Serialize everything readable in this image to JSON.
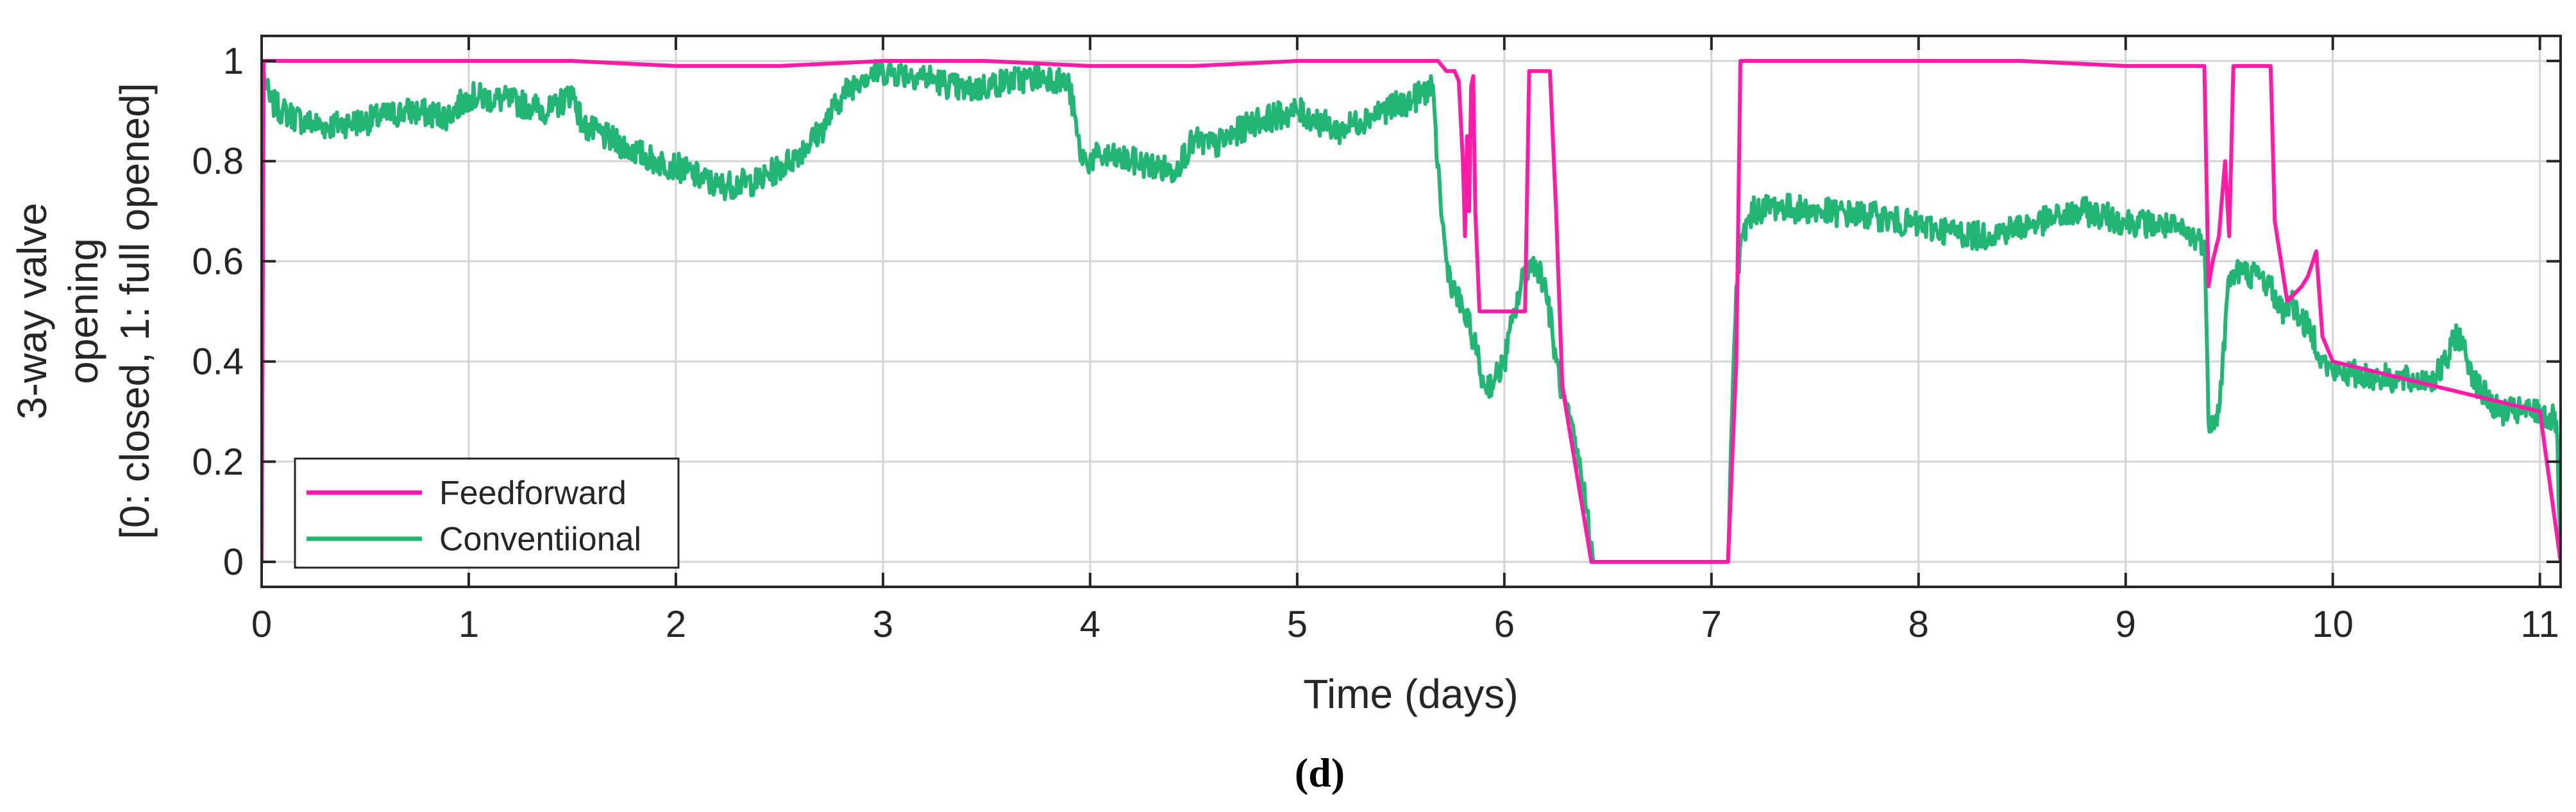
{
  "chart_data": {
    "type": "line",
    "xlabel": "Time (days)",
    "ylabel_lines": [
      "3-way valve",
      "opening",
      "[0: closed, 1: full opened]"
    ],
    "panel_label": "(d)",
    "xlim": [
      0,
      11.1
    ],
    "ylim": [
      -0.05,
      1.05
    ],
    "xticks": [
      0,
      1,
      2,
      3,
      4,
      5,
      6,
      7,
      8,
      9,
      10,
      11
    ],
    "xtick_labels": [
      "0",
      "1",
      "2",
      "3",
      "4",
      "5",
      "6",
      "7",
      "8",
      "9",
      "10",
      "11"
    ],
    "yticks": [
      0,
      0.2,
      0.4,
      0.6,
      0.8,
      1
    ],
    "ytick_labels": [
      "0",
      "0.2",
      "0.4",
      "0.6",
      "0.8",
      "1"
    ],
    "grid": true,
    "legend_position": "bottom-left",
    "colors": {
      "Feedforward": "#ff1aa8",
      "Conventiional": "#22b573"
    },
    "series": [
      {
        "name": "Feedforward",
        "x": [
          0,
          0.01,
          0.5,
          1.0,
          1.5,
          2.0,
          2.5,
          3.0,
          3.5,
          4.0,
          4.5,
          5.0,
          5.5,
          5.68,
          5.72,
          5.76,
          5.78,
          5.8,
          5.81,
          5.82,
          5.83,
          5.84,
          5.85,
          5.86,
          5.88,
          6.1,
          6.12,
          6.2,
          6.22,
          6.25,
          6.28,
          6.42,
          7.08,
          7.12,
          7.14,
          7.5,
          8.0,
          8.5,
          9.0,
          9.38,
          9.4,
          9.42,
          9.45,
          9.48,
          9.5,
          9.52,
          9.6,
          9.7,
          9.72,
          9.75,
          9.78,
          9.85,
          9.88,
          9.92,
          9.95,
          10.0,
          10.5,
          11.0,
          11.1
        ],
        "y": [
          0,
          1.0,
          1.0,
          1.0,
          1.0,
          0.99,
          0.99,
          1.0,
          1.0,
          0.99,
          0.99,
          1.0,
          1.0,
          1.0,
          0.98,
          0.98,
          0.96,
          0.8,
          0.65,
          0.85,
          0.7,
          0.95,
          0.97,
          0.7,
          0.5,
          0.5,
          0.98,
          0.98,
          0.98,
          0.7,
          0.35,
          0.0,
          0.0,
          0.4,
          1.0,
          1.0,
          1.0,
          1.0,
          0.99,
          0.99,
          0.55,
          0.6,
          0.65,
          0.8,
          0.65,
          0.99,
          0.99,
          0.99,
          0.68,
          0.6,
          0.52,
          0.55,
          0.57,
          0.62,
          0.45,
          0.4,
          0.35,
          0.3,
          0.0
        ]
      },
      {
        "name": "Conventiional",
        "x": [
          0,
          0.01,
          0.02,
          0.04,
          0.1,
          0.2,
          0.3,
          0.5,
          0.7,
          0.9,
          1.0,
          1.2,
          1.4,
          1.5,
          1.55,
          1.7,
          1.9,
          2.0,
          2.2,
          2.4,
          2.55,
          2.7,
          2.8,
          2.9,
          3.0,
          3.2,
          3.4,
          3.6,
          3.8,
          3.9,
          3.95,
          3.98,
          4.05,
          4.2,
          4.4,
          4.5,
          4.6,
          4.8,
          5.0,
          5.2,
          5.4,
          5.55,
          5.65,
          5.7,
          5.72,
          5.75,
          5.8,
          5.85,
          5.9,
          5.95,
          6.0,
          6.05,
          6.1,
          6.15,
          6.2,
          6.25,
          6.3,
          6.35,
          6.4,
          6.43,
          7.08,
          7.1,
          7.12,
          7.15,
          7.2,
          7.3,
          7.5,
          7.8,
          8.0,
          8.3,
          8.5,
          8.8,
          9.0,
          9.2,
          9.38,
          9.4,
          9.45,
          9.5,
          9.55,
          9.65,
          9.7,
          9.75,
          9.8,
          9.85,
          9.9,
          9.95,
          10.0,
          10.2,
          10.4,
          10.5,
          10.55,
          10.6,
          10.7,
          10.8,
          11.0,
          11.08,
          11.1
        ],
        "y": [
          0,
          0.98,
          0.95,
          0.92,
          0.9,
          0.88,
          0.87,
          0.88,
          0.9,
          0.89,
          0.93,
          0.92,
          0.9,
          0.94,
          0.87,
          0.84,
          0.8,
          0.79,
          0.75,
          0.76,
          0.8,
          0.86,
          0.93,
          0.97,
          0.98,
          0.97,
          0.94,
          0.96,
          0.97,
          0.95,
          0.82,
          0.8,
          0.81,
          0.8,
          0.78,
          0.84,
          0.83,
          0.88,
          0.9,
          0.86,
          0.9,
          0.92,
          0.95,
          0.68,
          0.6,
          0.55,
          0.5,
          0.45,
          0.35,
          0.36,
          0.4,
          0.5,
          0.58,
          0.6,
          0.55,
          0.4,
          0.3,
          0.22,
          0.1,
          0.0,
          0.0,
          0.3,
          0.55,
          0.65,
          0.7,
          0.71,
          0.7,
          0.69,
          0.67,
          0.65,
          0.67,
          0.7,
          0.68,
          0.67,
          0.64,
          0.28,
          0.3,
          0.57,
          0.58,
          0.57,
          0.55,
          0.5,
          0.52,
          0.48,
          0.46,
          0.4,
          0.38,
          0.37,
          0.36,
          0.37,
          0.4,
          0.46,
          0.35,
          0.3,
          0.3,
          0.28,
          0.0
        ]
      }
    ]
  }
}
